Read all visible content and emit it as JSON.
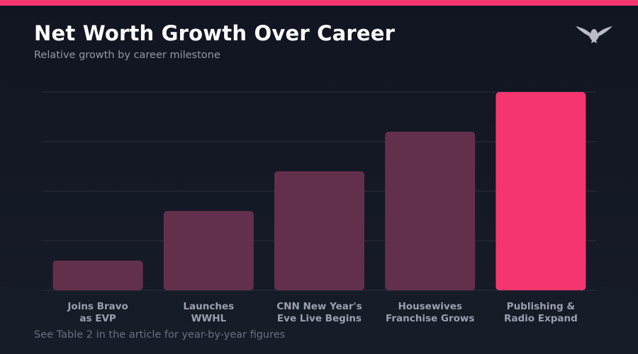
{
  "header": {
    "title": "Net Worth Growth Over Career",
    "subtitle": "Relative growth by career milestone"
  },
  "logo": {
    "icon": "eagle-icon"
  },
  "colors": {
    "accent": "#f5356f",
    "bar_default": "#63304b",
    "bar_highlight": "#f5356f",
    "gridline": "#2b303c",
    "tick_label": "#9b9fae"
  },
  "chart_data": {
    "type": "bar",
    "categories": [
      [
        "Joins Bravo",
        "as EVP"
      ],
      [
        "Launches",
        "WWHL"
      ],
      [
        "CNN New Year's",
        "Eve Live Begins"
      ],
      [
        "Housewives",
        "Franchise Grows"
      ],
      [
        "Publishing &",
        "Radio Expand"
      ]
    ],
    "values": [
      15,
      40,
      60,
      80,
      100
    ],
    "ylim": [
      0,
      100
    ],
    "grid": true,
    "highlight_index": 4,
    "xlabel": "",
    "ylabel": ""
  },
  "footnote": "See Table 2 in the article for year-by-year figures"
}
